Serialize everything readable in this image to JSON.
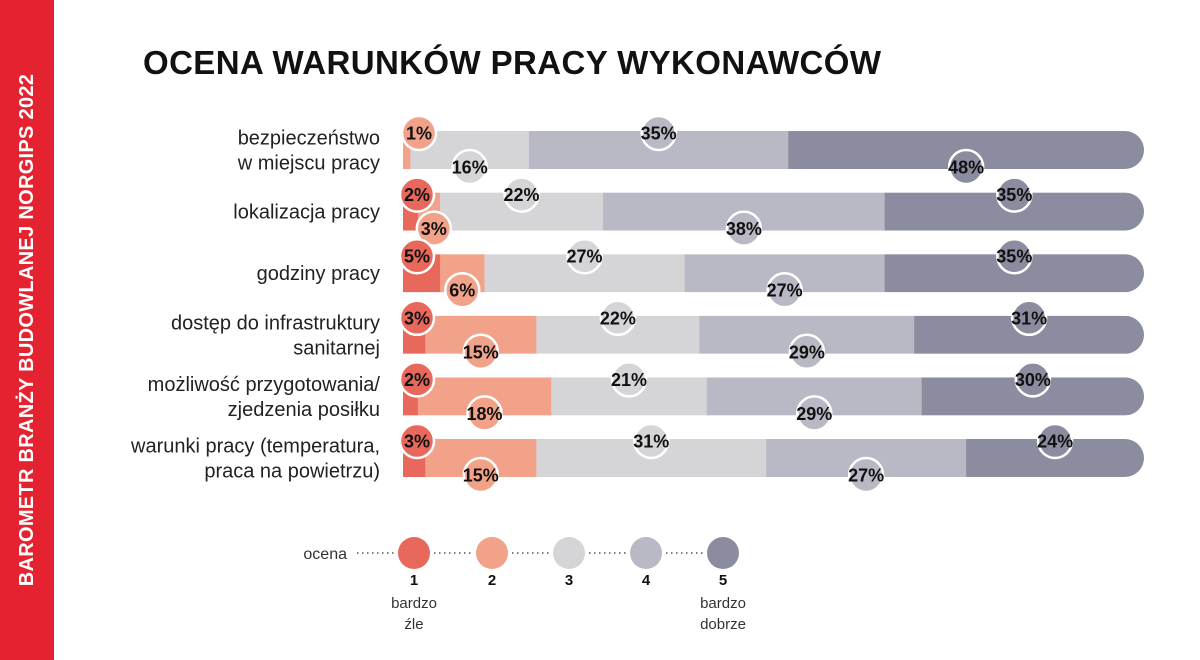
{
  "side_banner": "BAROMETR BRANŻY BUDOWLANEJ NORGIPS 2022",
  "title": "OCENA WARUNKÓW PRACY WYKONAWCÓW",
  "colors": {
    "banner": "#e52330",
    "1": "#e8685c",
    "2": "#f1a289",
    "3": "#d5d5d8",
    "4": "#b9b9c6",
    "5": "#8c8ca0"
  },
  "chart_data": {
    "type": "bar",
    "stacked": true,
    "orientation": "horizontal",
    "title": "OCENA WARUNKÓW PRACY WYKONAWCÓW",
    "categories": [
      [
        "bezpieczeństwo",
        "w miejscu pracy"
      ],
      [
        "lokalizacja pracy"
      ],
      [
        "godziny pracy"
      ],
      [
        "dostęp do infrastruktury",
        "sanitarnej"
      ],
      [
        "możliwość przygotowania/",
        "zjedzenia posiłku"
      ],
      [
        "warunki pracy (temperatura,",
        "praca na powietrzu)"
      ]
    ],
    "series": [
      {
        "name": "1",
        "values": [
          0,
          2,
          5,
          3,
          2,
          3
        ]
      },
      {
        "name": "2",
        "values": [
          1,
          3,
          6,
          15,
          18,
          15
        ]
      },
      {
        "name": "3",
        "values": [
          16,
          22,
          27,
          22,
          21,
          31
        ]
      },
      {
        "name": "4",
        "values": [
          35,
          38,
          27,
          29,
          29,
          27
        ]
      },
      {
        "name": "5",
        "values": [
          48,
          35,
          35,
          31,
          30,
          24
        ]
      }
    ],
    "value_suffix": "%",
    "legend": {
      "label": "ocena",
      "position": "bottom",
      "items": [
        {
          "num": "1",
          "desc": [
            "bardzo",
            "źle"
          ]
        },
        {
          "num": "2",
          "desc": []
        },
        {
          "num": "3",
          "desc": []
        },
        {
          "num": "4",
          "desc": []
        },
        {
          "num": "5",
          "desc": [
            "bardzo",
            "dobrze"
          ]
        }
      ]
    }
  }
}
